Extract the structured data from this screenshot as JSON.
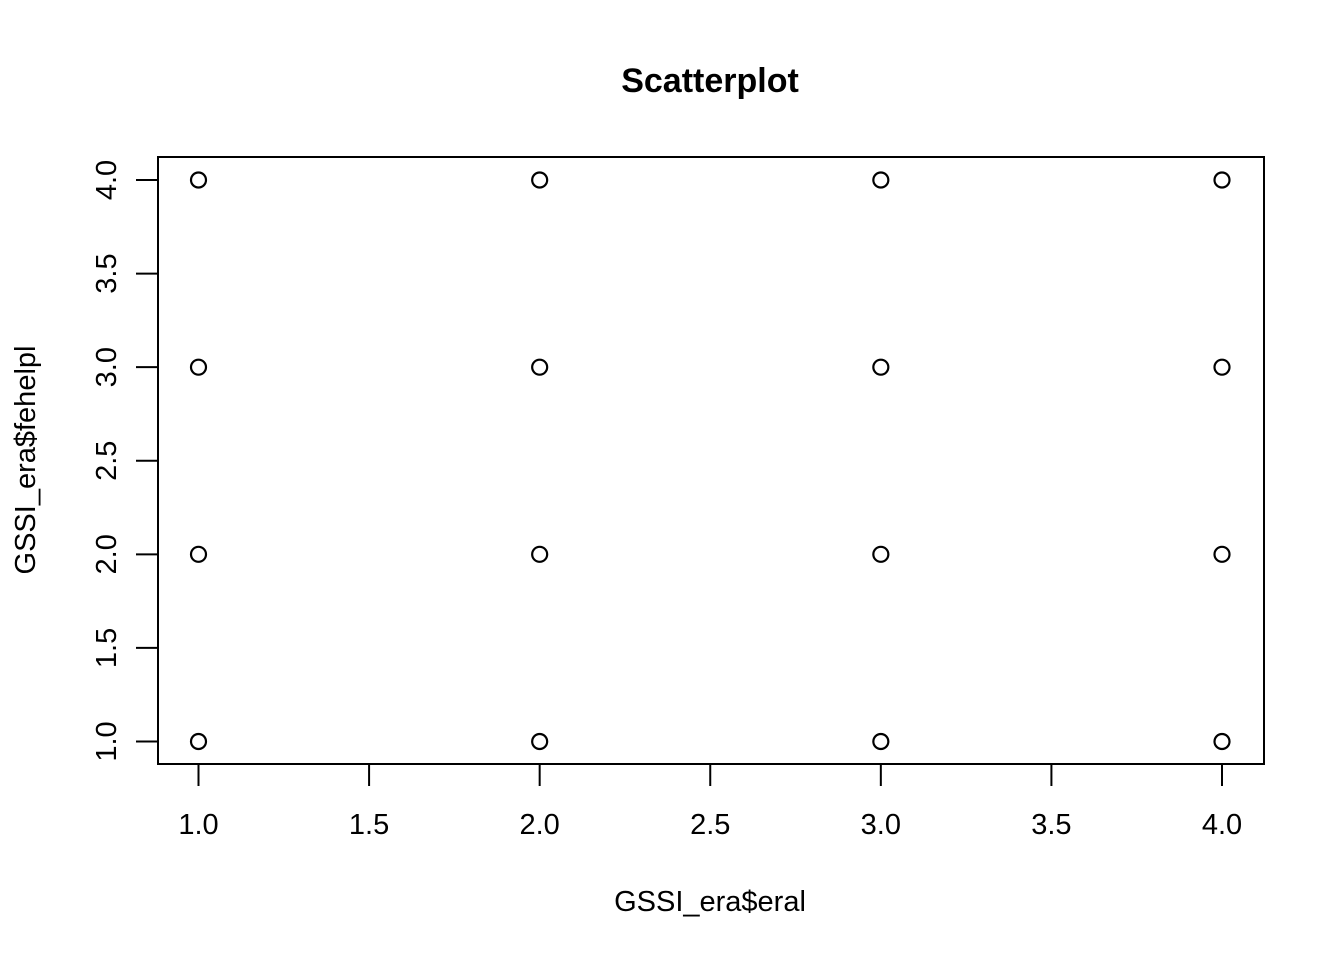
{
  "chart_data": {
    "type": "scatter",
    "title": "Scatterplot",
    "xlabel": "GSSI_era$eral",
    "ylabel": "GSSI_era$fehelpl",
    "xlim": [
      1.0,
      4.0
    ],
    "ylim": [
      1.0,
      4.0
    ],
    "x_ticks": [
      "1.0",
      "1.5",
      "2.0",
      "2.5",
      "3.0",
      "3.5",
      "4.0"
    ],
    "y_ticks": [
      "1.0",
      "1.5",
      "2.0",
      "2.5",
      "3.0",
      "3.5",
      "4.0"
    ],
    "grid": false,
    "marker": "open-circle",
    "point_color": "#000000",
    "points": [
      {
        "x": 1,
        "y": 1
      },
      {
        "x": 1,
        "y": 2
      },
      {
        "x": 1,
        "y": 3
      },
      {
        "x": 1,
        "y": 4
      },
      {
        "x": 2,
        "y": 1
      },
      {
        "x": 2,
        "y": 2
      },
      {
        "x": 2,
        "y": 3
      },
      {
        "x": 2,
        "y": 4
      },
      {
        "x": 3,
        "y": 1
      },
      {
        "x": 3,
        "y": 2
      },
      {
        "x": 3,
        "y": 3
      },
      {
        "x": 3,
        "y": 4
      },
      {
        "x": 4,
        "y": 1
      },
      {
        "x": 4,
        "y": 2
      },
      {
        "x": 4,
        "y": 3
      },
      {
        "x": 4,
        "y": 4
      }
    ]
  }
}
